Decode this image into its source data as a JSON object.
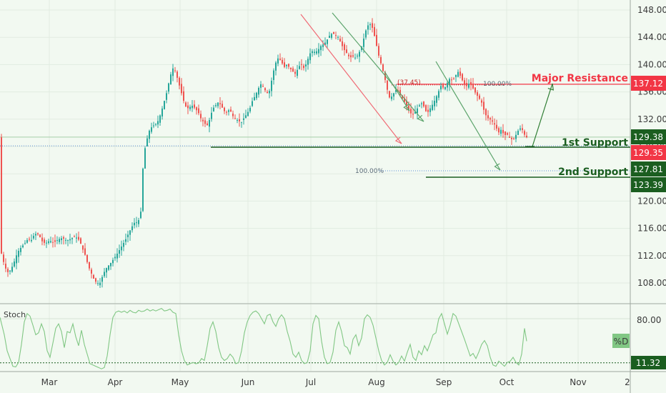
{
  "chart_data": {
    "type": "candlestick",
    "y_axis": {
      "range": [
        104,
        150
      ],
      "ticks": [
        148,
        144,
        140,
        136,
        132,
        128,
        124,
        120,
        116,
        112,
        108
      ],
      "tick_labels": [
        "148.00",
        "144.00",
        "140.00",
        "136.00",
        "132.00",
        "128.00",
        "124.00",
        "120.00",
        "116.00",
        "112.00",
        "108.00"
      ]
    },
    "x_axis": {
      "labels": [
        "Mar",
        "Apr",
        "May",
        "Jun",
        "Jul",
        "Aug",
        "Sep",
        "Oct",
        "Nov",
        "2"
      ]
    },
    "price_tags": [
      {
        "value": 137.12,
        "label": "137.12",
        "color": "#f23645"
      },
      {
        "value": 129.38,
        "label": "129.38",
        "color": "#1b5e20"
      },
      {
        "value": 129.35,
        "label": "129.35",
        "color": "#f23645"
      },
      {
        "value": 127.81,
        "label": "127.81",
        "color": "#1b5e20"
      },
      {
        "value": 123.39,
        "label": "123.39",
        "color": "#1b5e20"
      }
    ],
    "annotations": {
      "major_resistance": "Major Resistance",
      "first_support": "1st Support",
      "second_support": "2nd Support",
      "fib_a": "(37.45)",
      "fib_b": "100.00%",
      "fib_c": "100.00%"
    },
    "levels": {
      "resistance": 137.12,
      "first_support": 129.38,
      "second_support": 123.39,
      "fib_second": 127.81
    },
    "oscillator": {
      "name": "Stoch",
      "tick": "80.00",
      "badge": "%D",
      "value_label": "11.32",
      "range": [
        0,
        100
      ],
      "level": 11.32
    },
    "colors": {
      "up": "#26a69a",
      "down": "#ef5350",
      "accent_green": "#1b5e20",
      "accent_red": "#f23645",
      "stoch_line": "#81c784"
    },
    "price_path": [
      [
        0,
        113.5
      ],
      [
        4,
        111.6
      ],
      [
        8,
        110.2
      ],
      [
        12,
        109.5
      ],
      [
        16,
        110.0
      ],
      [
        20,
        111.0
      ],
      [
        25,
        112.5
      ],
      [
        30,
        113.2
      ],
      [
        35,
        113.8
      ],
      [
        40,
        114.5
      ],
      [
        44,
        114.2
      ],
      [
        48,
        115.0
      ],
      [
        52,
        115.3
      ],
      [
        56,
        114.8
      ],
      [
        60,
        114.0
      ],
      [
        64,
        113.8
      ],
      [
        70,
        114.2
      ],
      [
        76,
        113.9
      ],
      [
        82,
        114.4
      ],
      [
        88,
        114.6
      ],
      [
        94,
        114.2
      ],
      [
        100,
        114.5
      ],
      [
        106,
        114.8
      ],
      [
        112,
        114.2
      ],
      [
        116,
        113.0
      ],
      [
        120,
        112.0
      ],
      [
        124,
        110.5
      ],
      [
        128,
        109.5
      ],
      [
        132,
        108.5
      ],
      [
        136,
        108.0
      ],
      [
        140,
        107.9
      ],
      [
        144,
        109.0
      ],
      [
        148,
        110.0
      ],
      [
        152,
        110.5
      ],
      [
        156,
        111.0
      ],
      [
        160,
        111.6
      ],
      [
        164,
        112.2
      ],
      [
        168,
        112.9
      ],
      [
        172,
        113.6
      ],
      [
        176,
        114.3
      ],
      [
        180,
        115.2
      ],
      [
        184,
        116.0
      ],
      [
        188,
        116.8
      ],
      [
        192,
        116.9
      ],
      [
        196,
        117.4
      ],
      [
        199,
        119.5
      ],
      [
        200,
        124.0
      ],
      [
        202,
        127.0
      ],
      [
        206,
        129.0
      ],
      [
        210,
        130.5
      ],
      [
        214,
        131.0
      ],
      [
        218,
        131.2
      ],
      [
        222,
        131.8
      ],
      [
        226,
        133.0
      ],
      [
        230,
        134.5
      ],
      [
        234,
        136.0
      ],
      [
        238,
        138.0
      ],
      [
        242,
        139.5
      ],
      [
        246,
        139.0
      ],
      [
        250,
        137.5
      ],
      [
        254,
        136.0
      ],
      [
        258,
        134.5
      ],
      [
        262,
        133.5
      ],
      [
        266,
        133.8
      ],
      [
        270,
        134.0
      ],
      [
        274,
        133.5
      ],
      [
        278,
        133.0
      ],
      [
        282,
        132.0
      ],
      [
        286,
        131.5
      ],
      [
        290,
        131.0
      ],
      [
        294,
        132.0
      ],
      [
        298,
        133.5
      ],
      [
        302,
        134.0
      ],
      [
        306,
        134.5
      ],
      [
        310,
        134.0
      ],
      [
        314,
        133.2
      ],
      [
        318,
        133.0
      ],
      [
        322,
        133.5
      ],
      [
        326,
        132.5
      ],
      [
        330,
        132.0
      ],
      [
        334,
        131.8
      ],
      [
        338,
        131.5
      ],
      [
        342,
        132.2
      ],
      [
        346,
        132.8
      ],
      [
        350,
        133.5
      ],
      [
        354,
        134.8
      ],
      [
        358,
        135.5
      ],
      [
        362,
        136.5
      ],
      [
        366,
        137.2
      ],
      [
        370,
        136.5
      ],
      [
        374,
        135.8
      ],
      [
        378,
        136.2
      ],
      [
        382,
        138.5
      ],
      [
        386,
        140.2
      ],
      [
        390,
        141.0
      ],
      [
        394,
        140.5
      ],
      [
        398,
        139.6
      ],
      [
        402,
        140.0
      ],
      [
        406,
        139.5
      ],
      [
        410,
        139.0
      ],
      [
        414,
        138.6
      ],
      [
        418,
        139.6
      ],
      [
        422,
        140.1
      ],
      [
        426,
        139.4
      ],
      [
        430,
        140.4
      ],
      [
        434,
        141.6
      ],
      [
        438,
        142.0
      ],
      [
        442,
        141.8
      ],
      [
        446,
        142.2
      ],
      [
        450,
        142.8
      ],
      [
        454,
        143.0
      ],
      [
        458,
        143.6
      ],
      [
        462,
        144.3
      ],
      [
        466,
        144.6
      ],
      [
        470,
        144.3
      ],
      [
        474,
        144.0
      ],
      [
        478,
        143.0
      ],
      [
        482,
        142.2
      ],
      [
        486,
        141.6
      ],
      [
        490,
        141.0
      ],
      [
        494,
        141.2
      ],
      [
        498,
        141.0
      ],
      [
        502,
        141.5
      ],
      [
        506,
        142.5
      ],
      [
        510,
        144.0
      ],
      [
        514,
        145.6
      ],
      [
        518,
        146.0
      ],
      [
        522,
        145.3
      ],
      [
        526,
        143.5
      ],
      [
        530,
        141.5
      ],
      [
        534,
        140.0
      ],
      [
        538,
        138.5
      ],
      [
        542,
        136.5
      ],
      [
        546,
        135.0
      ],
      [
        550,
        135.5
      ],
      [
        554,
        136.3
      ],
      [
        558,
        136.0
      ],
      [
        562,
        135.2
      ],
      [
        566,
        134.6
      ],
      [
        570,
        134.0
      ],
      [
        574,
        133.0
      ],
      [
        578,
        132.6
      ],
      [
        582,
        133.2
      ],
      [
        586,
        133.8
      ],
      [
        590,
        134.4
      ],
      [
        594,
        133.8
      ],
      [
        598,
        132.8
      ],
      [
        602,
        133.5
      ],
      [
        606,
        134.2
      ],
      [
        610,
        135.0
      ],
      [
        614,
        136.0
      ],
      [
        618,
        137.0
      ],
      [
        622,
        136.4
      ],
      [
        626,
        137.2
      ],
      [
        630,
        138.0
      ],
      [
        634,
        137.6
      ],
      [
        638,
        138.4
      ],
      [
        642,
        139.0
      ],
      [
        646,
        138.0
      ],
      [
        650,
        137.2
      ],
      [
        654,
        136.8
      ],
      [
        658,
        137.4
      ],
      [
        662,
        136.6
      ],
      [
        666,
        135.8
      ],
      [
        670,
        135.2
      ],
      [
        674,
        134.6
      ],
      [
        678,
        133.2
      ],
      [
        682,
        132.2
      ],
      [
        686,
        132.0
      ],
      [
        690,
        131.6
      ],
      [
        694,
        131.0
      ],
      [
        698,
        130.0
      ],
      [
        702,
        130.5
      ],
      [
        706,
        129.6
      ],
      [
        710,
        129.8
      ],
      [
        714,
        129.2
      ],
      [
        718,
        129.0
      ],
      [
        722,
        129.6
      ],
      [
        726,
        130.4
      ],
      [
        730,
        130.8
      ],
      [
        734,
        129.8
      ],
      [
        737,
        129.35
      ]
    ],
    "stoch_path": [
      [
        0,
        82
      ],
      [
        6,
        55
      ],
      [
        10,
        30
      ],
      [
        14,
        18
      ],
      [
        18,
        6
      ],
      [
        22,
        5
      ],
      [
        26,
        12
      ],
      [
        30,
        40
      ],
      [
        34,
        75
      ],
      [
        38,
        88
      ],
      [
        42,
        84
      ],
      [
        46,
        70
      ],
      [
        50,
        55
      ],
      [
        54,
        58
      ],
      [
        58,
        72
      ],
      [
        62,
        60
      ],
      [
        66,
        30
      ],
      [
        70,
        20
      ],
      [
        74,
        42
      ],
      [
        78,
        65
      ],
      [
        82,
        72
      ],
      [
        86,
        60
      ],
      [
        90,
        35
      ],
      [
        94,
        60
      ],
      [
        98,
        58
      ],
      [
        102,
        72
      ],
      [
        106,
        52
      ],
      [
        110,
        38
      ],
      [
        114,
        62
      ],
      [
        118,
        40
      ],
      [
        122,
        25
      ],
      [
        126,
        10
      ],
      [
        130,
        8
      ],
      [
        134,
        6
      ],
      [
        138,
        4
      ],
      [
        142,
        2
      ],
      [
        146,
        4
      ],
      [
        150,
        22
      ],
      [
        154,
        55
      ],
      [
        158,
        82
      ],
      [
        162,
        90
      ],
      [
        166,
        92
      ],
      [
        170,
        90
      ],
      [
        174,
        92
      ],
      [
        178,
        89
      ],
      [
        182,
        93
      ],
      [
        186,
        90
      ],
      [
        190,
        89
      ],
      [
        194,
        93
      ],
      [
        198,
        91
      ],
      [
        202,
        92
      ],
      [
        206,
        95
      ],
      [
        210,
        92
      ],
      [
        214,
        94
      ],
      [
        218,
        92
      ],
      [
        222,
        94
      ],
      [
        226,
        96
      ],
      [
        230,
        92
      ],
      [
        234,
        93
      ],
      [
        238,
        95
      ],
      [
        242,
        90
      ],
      [
        246,
        88
      ],
      [
        250,
        55
      ],
      [
        254,
        30
      ],
      [
        258,
        15
      ],
      [
        262,
        8
      ],
      [
        266,
        10
      ],
      [
        270,
        12
      ],
      [
        274,
        10
      ],
      [
        278,
        11
      ],
      [
        282,
        18
      ],
      [
        286,
        15
      ],
      [
        290,
        38
      ],
      [
        294,
        65
      ],
      [
        298,
        75
      ],
      [
        302,
        60
      ],
      [
        306,
        35
      ],
      [
        310,
        20
      ],
      [
        314,
        15
      ],
      [
        318,
        18
      ],
      [
        322,
        25
      ],
      [
        326,
        20
      ],
      [
        330,
        10
      ],
      [
        334,
        12
      ],
      [
        338,
        30
      ],
      [
        342,
        58
      ],
      [
        346,
        75
      ],
      [
        350,
        85
      ],
      [
        354,
        90
      ],
      [
        358,
        92
      ],
      [
        362,
        88
      ],
      [
        366,
        80
      ],
      [
        370,
        72
      ],
      [
        374,
        85
      ],
      [
        378,
        87
      ],
      [
        382,
        75
      ],
      [
        386,
        68
      ],
      [
        390,
        80
      ],
      [
        394,
        86
      ],
      [
        398,
        80
      ],
      [
        402,
        60
      ],
      [
        406,
        45
      ],
      [
        410,
        25
      ],
      [
        414,
        20
      ],
      [
        418,
        28
      ],
      [
        422,
        15
      ],
      [
        426,
        10
      ],
      [
        430,
        12
      ],
      [
        434,
        30
      ],
      [
        438,
        72
      ],
      [
        442,
        85
      ],
      [
        446,
        80
      ],
      [
        450,
        45
      ],
      [
        454,
        20
      ],
      [
        458,
        10
      ],
      [
        462,
        12
      ],
      [
        466,
        28
      ],
      [
        470,
        62
      ],
      [
        474,
        75
      ],
      [
        478,
        60
      ],
      [
        482,
        38
      ],
      [
        486,
        35
      ],
      [
        490,
        25
      ],
      [
        494,
        48
      ],
      [
        498,
        55
      ],
      [
        502,
        38
      ],
      [
        506,
        50
      ],
      [
        510,
        80
      ],
      [
        514,
        86
      ],
      [
        518,
        82
      ],
      [
        522,
        70
      ],
      [
        526,
        50
      ],
      [
        530,
        30
      ],
      [
        534,
        15
      ],
      [
        538,
        8
      ],
      [
        542,
        12
      ],
      [
        546,
        24
      ],
      [
        550,
        14
      ],
      [
        554,
        8
      ],
      [
        558,
        12
      ],
      [
        562,
        22
      ],
      [
        566,
        14
      ],
      [
        570,
        28
      ],
      [
        574,
        40
      ],
      [
        578,
        20
      ],
      [
        582,
        15
      ],
      [
        586,
        30
      ],
      [
        590,
        24
      ],
      [
        594,
        38
      ],
      [
        598,
        30
      ],
      [
        602,
        42
      ],
      [
        606,
        55
      ],
      [
        610,
        58
      ],
      [
        614,
        80
      ],
      [
        618,
        88
      ],
      [
        622,
        72
      ],
      [
        626,
        56
      ],
      [
        630,
        70
      ],
      [
        634,
        88
      ],
      [
        638,
        84
      ],
      [
        642,
        72
      ],
      [
        646,
        60
      ],
      [
        650,
        48
      ],
      [
        654,
        35
      ],
      [
        658,
        22
      ],
      [
        662,
        26
      ],
      [
        666,
        18
      ],
      [
        670,
        28
      ],
      [
        674,
        40
      ],
      [
        678,
        46
      ],
      [
        682,
        38
      ],
      [
        686,
        20
      ],
      [
        690,
        8
      ],
      [
        694,
        6
      ],
      [
        698,
        14
      ],
      [
        702,
        10
      ],
      [
        706,
        6
      ],
      [
        710,
        12
      ],
      [
        714,
        14
      ],
      [
        718,
        20
      ],
      [
        722,
        12
      ],
      [
        726,
        8
      ],
      [
        730,
        25
      ],
      [
        734,
        65
      ],
      [
        737,
        45
      ]
    ]
  }
}
